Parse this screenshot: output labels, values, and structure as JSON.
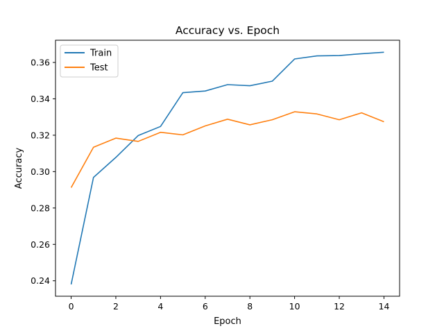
{
  "chart_data": {
    "type": "line",
    "title": "Accuracy vs. Epoch",
    "xlabel": "Epoch",
    "ylabel": "Accuracy",
    "xlim": [
      -0.7,
      14.7
    ],
    "ylim": [
      0.2315,
      0.3722
    ],
    "xticks": [
      0,
      2,
      4,
      6,
      8,
      10,
      12,
      14
    ],
    "xtick_labels": [
      "0",
      "2",
      "4",
      "6",
      "8",
      "10",
      "12",
      "14"
    ],
    "yticks": [
      0.24,
      0.26,
      0.28,
      0.3,
      0.32,
      0.34,
      0.36
    ],
    "ytick_labels": [
      "0.24",
      "0.26",
      "0.28",
      "0.30",
      "0.32",
      "0.34",
      "0.36"
    ],
    "grid": false,
    "legend_position": "top-left",
    "x": [
      0,
      1,
      2,
      3,
      4,
      5,
      6,
      7,
      8,
      9,
      10,
      11,
      12,
      13,
      14
    ],
    "series": [
      {
        "name": "Train",
        "color": "#1f77b4",
        "values": [
          0.238,
          0.2968,
          0.3078,
          0.3198,
          0.3248,
          0.3434,
          0.3443,
          0.3478,
          0.3472,
          0.3497,
          0.3619,
          0.3636,
          0.3638,
          0.3648,
          0.3656
        ]
      },
      {
        "name": "Test",
        "color": "#ff7f0e",
        "values": [
          0.2912,
          0.3134,
          0.3184,
          0.3166,
          0.3216,
          0.3202,
          0.3251,
          0.3288,
          0.3257,
          0.3285,
          0.3329,
          0.3317,
          0.3285,
          0.3323,
          0.3274
        ]
      }
    ]
  }
}
